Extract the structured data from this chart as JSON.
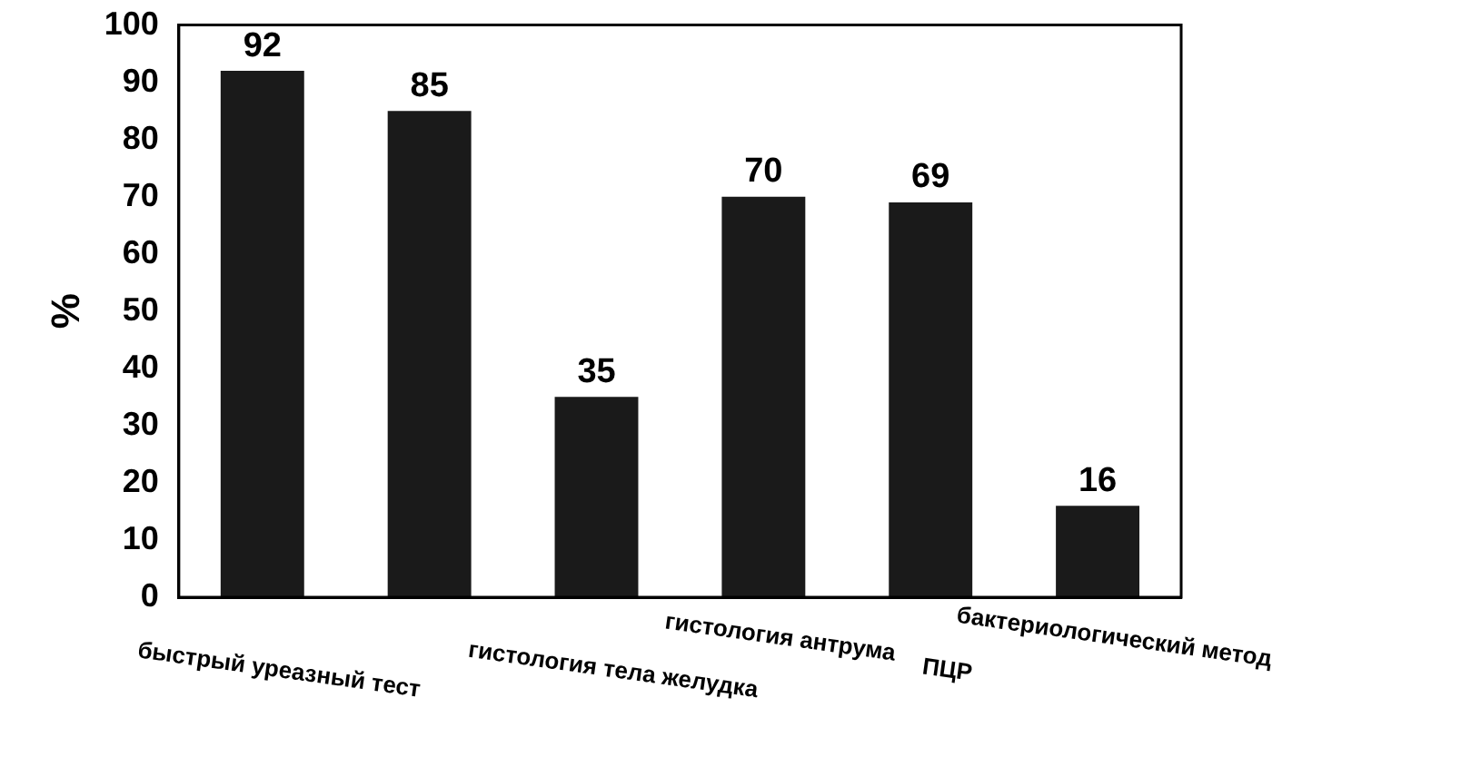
{
  "chart_data": {
    "type": "bar",
    "ylabel": "%",
    "categories": [
      "быстрый уреазный тест",
      null,
      "гистология тела желудка",
      "гистология антрума",
      "ПЦР",
      "бактериологический метод"
    ],
    "values": [
      92,
      85,
      35,
      70,
      69,
      16
    ],
    "color": "#1a1a1a",
    "ylim": [
      0,
      100
    ],
    "yticks": [
      0,
      10,
      20,
      30,
      40,
      50,
      60,
      70,
      80,
      90,
      100
    ],
    "grid": false,
    "legend": false,
    "data_labels": true
  }
}
